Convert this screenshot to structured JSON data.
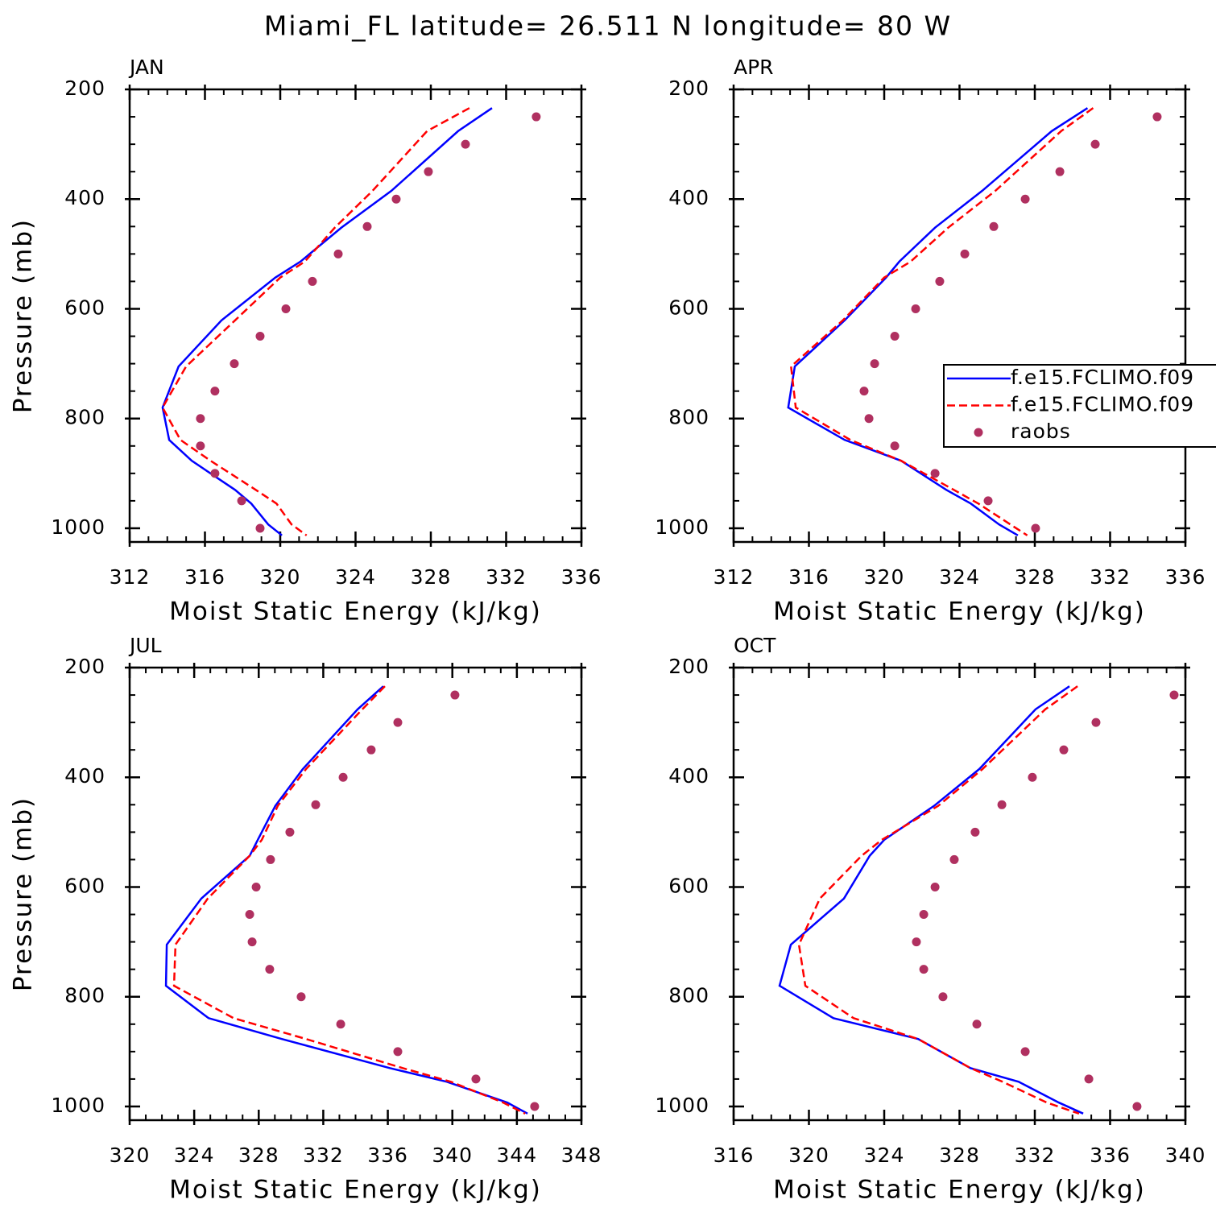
{
  "title": "Miami_FL  latitude= 26.511 N longitude= 80 W",
  "chart_data": [
    {
      "type": "line",
      "title": "JAN",
      "xlabel": "Moist Static Energy (kJ/kg)",
      "ylabel": "Pressure (mb)",
      "xlim": [
        312,
        336
      ],
      "xticks": [
        312,
        316,
        320,
        324,
        328,
        332,
        336
      ],
      "xminor": 1,
      "ylim": [
        1025,
        200
      ],
      "yticks": [
        200,
        400,
        600,
        800,
        1000
      ],
      "yminor": 50,
      "series": [
        {
          "color": "#0000ff",
          "style": "solid",
          "x": [
            331.25,
            329.45,
            325.9,
            323.25,
            321.07,
            319.74,
            316.88,
            314.6,
            313.75,
            314.1,
            315.3,
            317.6,
            318.46,
            319.36,
            320.09
          ],
          "y": [
            234,
            276,
            385,
            452,
            514,
            543,
            621,
            705,
            780,
            839,
            877,
            930,
            955,
            993,
            1013
          ]
        },
        {
          "color": "#ff0000",
          "style": "dashed",
          "x": [
            330.05,
            327.8,
            324.9,
            322.9,
            321.3,
            320,
            317.6,
            315,
            313.75,
            314.7,
            316.3,
            318.7,
            319.8,
            320.6,
            321.4
          ],
          "y": [
            234,
            276,
            385,
            452,
            514,
            543,
            621,
            705,
            780,
            839,
            877,
            930,
            955,
            993,
            1013
          ]
        },
        {
          "color": "#b03060",
          "style": "markers",
          "x": [
            333.6,
            329.84,
            327.87,
            326.16,
            324.62,
            323.08,
            321.71,
            320.3,
            318.93,
            317.56,
            316.53,
            315.76,
            315.76,
            316.53,
            317.95,
            318.93
          ],
          "y": [
            250,
            300,
            350,
            400,
            450,
            500,
            550,
            600,
            650,
            700,
            750,
            800,
            850,
            900,
            950,
            1000
          ]
        }
      ]
    },
    {
      "type": "line",
      "title": "APR",
      "xlabel": "Moist Static Energy (kJ/kg)",
      "xlim": [
        312,
        336
      ],
      "xticks": [
        312,
        316,
        320,
        324,
        328,
        332,
        336
      ],
      "xminor": 1,
      "ylim": [
        1025,
        200
      ],
      "yticks": [
        200,
        400,
        600,
        800,
        1000
      ],
      "yminor": 50,
      "legend": "right",
      "series": [
        {
          "name": "f.e15.FCLIMO.f09",
          "color": "#0000ff",
          "style": "solid",
          "x": [
            330.8,
            328.9,
            325.2,
            322.7,
            320.8,
            320.1,
            317.9,
            315.25,
            314.9,
            317.9,
            320.9,
            323.3,
            324.6,
            326.1,
            327.1
          ],
          "y": [
            234,
            276,
            385,
            452,
            514,
            543,
            621,
            705,
            780,
            839,
            877,
            930,
            955,
            993,
            1013
          ]
        },
        {
          "name": "f.e15.FCLIMO.f09",
          "color": "#ff0000",
          "style": "dashed",
          "x": [
            331.1,
            329.4,
            325.9,
            323.4,
            321.4,
            320,
            317.8,
            315.05,
            315.3,
            318.2,
            320.9,
            323.7,
            325,
            326.7,
            327.6
          ],
          "y": [
            234,
            276,
            385,
            452,
            514,
            543,
            621,
            705,
            780,
            839,
            877,
            930,
            955,
            993,
            1013
          ]
        },
        {
          "name": "raobs",
          "color": "#b03060",
          "style": "markers",
          "x": [
            334.5,
            331.21,
            329.33,
            327.49,
            325.82,
            324.28,
            322.95,
            321.67,
            320.56,
            319.49,
            318.93,
            319.19,
            320.56,
            322.7,
            325.52,
            328.04
          ],
          "y": [
            250,
            300,
            350,
            400,
            450,
            500,
            550,
            600,
            650,
            700,
            750,
            800,
            850,
            900,
            950,
            1000
          ]
        }
      ]
    },
    {
      "type": "line",
      "title": "JUL",
      "xlabel": "Moist Static Energy (kJ/kg)",
      "ylabel": "Pressure (mb)",
      "xlim": [
        320,
        348
      ],
      "xticks": [
        320,
        324,
        328,
        332,
        336,
        340,
        344,
        348
      ],
      "xminor": 1,
      "ylim": [
        1025,
        200
      ],
      "yticks": [
        200,
        400,
        600,
        800,
        1000
      ],
      "yminor": 50,
      "series": [
        {
          "color": "#0000ff",
          "style": "solid",
          "x": [
            335.72,
            334.13,
            330.73,
            329.03,
            327.94,
            327.44,
            324.44,
            322.3,
            322.25,
            324.89,
            329.43,
            336.12,
            339.66,
            343.41,
            344.66
          ],
          "y": [
            234,
            276,
            385,
            452,
            514,
            543,
            621,
            705,
            780,
            839,
            877,
            930,
            955,
            993,
            1013
          ]
        },
        {
          "color": "#ff0000",
          "style": "dashed",
          "x": [
            335.82,
            334.42,
            330.93,
            329.18,
            328.19,
            327.44,
            324.84,
            322.84,
            322.75,
            326.44,
            330.93,
            336.92,
            339.91,
            343.16,
            344.51
          ],
          "y": [
            234,
            276,
            385,
            452,
            514,
            543,
            621,
            705,
            780,
            839,
            877,
            930,
            955,
            993,
            1013
          ]
        },
        {
          "color": "#b03060",
          "style": "markers",
          "x": [
            340.16,
            336.62,
            334.97,
            333.23,
            331.53,
            329.93,
            328.73,
            327.84,
            327.44,
            327.59,
            328.68,
            330.63,
            333.08,
            336.62,
            341.46,
            345.1
          ],
          "y": [
            250,
            300,
            350,
            400,
            450,
            500,
            550,
            600,
            650,
            700,
            750,
            800,
            850,
            900,
            950,
            1000
          ]
        }
      ]
    },
    {
      "type": "line",
      "title": "OCT",
      "xlabel": "Moist Static Energy (kJ/kg)",
      "xlim": [
        316,
        340
      ],
      "xticks": [
        316,
        320,
        324,
        328,
        332,
        336,
        340
      ],
      "xminor": 1,
      "ylim": [
        1025,
        200
      ],
      "yticks": [
        200,
        400,
        600,
        800,
        1000
      ],
      "yminor": 50,
      "series": [
        {
          "color": "#0000ff",
          "style": "solid",
          "x": [
            333.84,
            332.04,
            329.05,
            326.65,
            324,
            323.23,
            321.86,
            319.04,
            318.44,
            321.3,
            325.8,
            328.58,
            331.14,
            333.28,
            334.57
          ],
          "y": [
            234,
            276,
            385,
            452,
            514,
            543,
            621,
            705,
            780,
            839,
            877,
            930,
            955,
            993,
            1013
          ]
        },
        {
          "color": "#ff0000",
          "style": "dashed",
          "x": [
            334.27,
            332.56,
            329.22,
            326.87,
            323.87,
            322.8,
            320.58,
            319.47,
            319.81,
            322.37,
            325.8,
            328.58,
            330.29,
            332.64,
            334.35
          ],
          "y": [
            234,
            276,
            385,
            452,
            514,
            543,
            621,
            705,
            780,
            839,
            877,
            930,
            955,
            993,
            1013
          ]
        },
        {
          "color": "#b03060",
          "style": "markers",
          "x": [
            339.4,
            335.25,
            333.54,
            331.87,
            330.25,
            328.83,
            327.72,
            326.7,
            326.1,
            325.71,
            326.1,
            327.12,
            328.92,
            331.49,
            334.87,
            337.43
          ],
          "y": [
            250,
            300,
            350,
            400,
            450,
            500,
            550,
            600,
            650,
            700,
            750,
            800,
            850,
            900,
            950,
            1000
          ]
        }
      ]
    }
  ]
}
